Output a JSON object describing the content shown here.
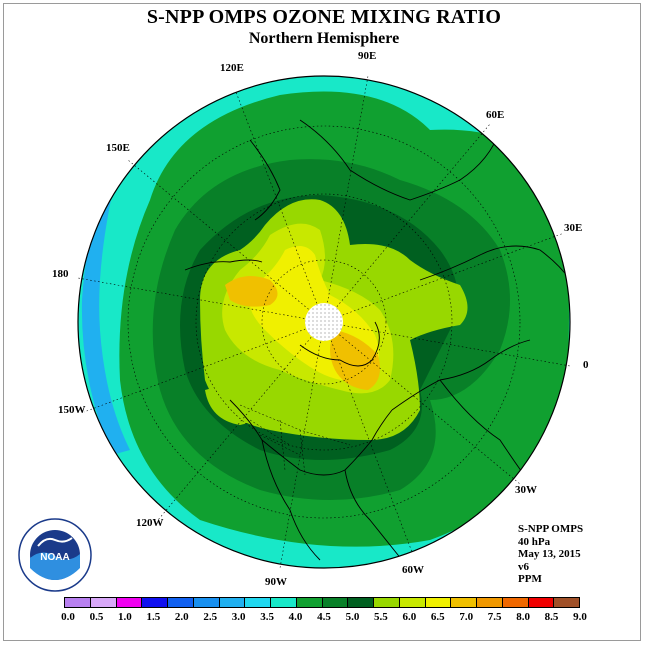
{
  "header": {
    "title": "S-NPP OMPS OZONE MIXING RATIO",
    "subtitle": "Northern Hemisphere"
  },
  "map": {
    "projection": "north-polar-stereographic",
    "longitude_labels": [
      "90E",
      "60E",
      "30E",
      "0",
      "30W",
      "60W",
      "90W",
      "120W",
      "150W",
      "180",
      "150E",
      "120E"
    ],
    "field_levels": {
      "outer_ring": "3.5-4.0",
      "middle_ring": "4.0-4.5",
      "inner_ring": "4.5-5.0",
      "core": "5.0-5.5",
      "high": "5.5-6.0",
      "peak": "6.5-7.0"
    }
  },
  "info": {
    "instrument": "S-NPP OMPS",
    "level": "40 hPa",
    "date": "May 13, 2015",
    "version": "v6",
    "units": "PPM"
  },
  "logo": {
    "text": "NOAA",
    "ring_text": "NATIONAL OCEANIC AND ATMOSPHERIC ADMINISTRATION · U.S. DEPARTMENT OF COMMERCE"
  },
  "colorbar": {
    "colors": [
      "#b880f0",
      "#d8a8f8",
      "#f000f0",
      "#1010f0",
      "#1060f0",
      "#1890f0",
      "#20b0f0",
      "#20d8f0",
      "#18e8c8",
      "#10a030",
      "#088028",
      "#006020",
      "#98d800",
      "#c8e800",
      "#f0f000",
      "#f0c000",
      "#f09800",
      "#f06800",
      "#f00000",
      "#a05028"
    ],
    "ticks": [
      "0.0",
      "0.5",
      "1.0",
      "1.5",
      "2.0",
      "2.5",
      "3.0",
      "3.5",
      "4.0",
      "4.5",
      "5.0",
      "5.5",
      "6.0",
      "6.5",
      "7.0",
      "7.5",
      "8.0",
      "8.5",
      "9.0"
    ]
  }
}
